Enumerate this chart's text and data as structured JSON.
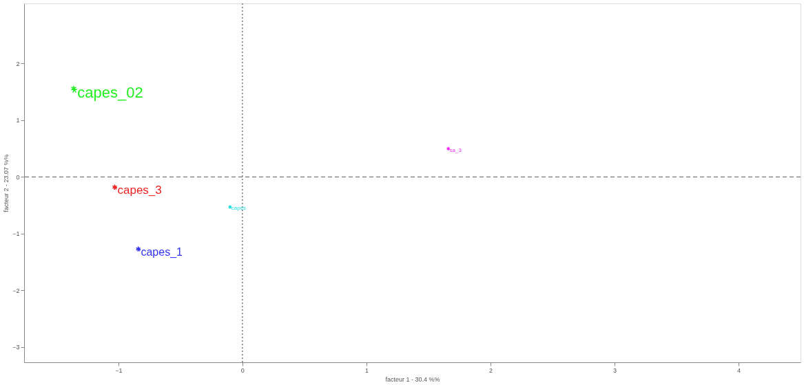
{
  "chart_data": {
    "type": "scatter",
    "xlabel": "facteur  1  - 30.4 %%",
    "ylabel": "facteur 2 - 23.07 %%",
    "xlim": [
      -1.76,
      4.5
    ],
    "xticks": [
      -1,
      0,
      1,
      2,
      3,
      4
    ],
    "ylim": [
      -3.27,
      3.06
    ],
    "yticks": [
      -3,
      -2,
      -1,
      0,
      1,
      2
    ],
    "grid": false,
    "legend": false,
    "marker": "cross",
    "ref_lines": [
      {
        "axis": "x",
        "value": 0,
        "line_style": "dotted",
        "color": "#555555"
      },
      {
        "axis": "y",
        "value": 0,
        "line_style": "dashed",
        "color": "#777777"
      }
    ],
    "series": [
      {
        "name": "*capes_02",
        "color": "#22ee22",
        "x": [
          -1.36
        ],
        "values": [
          1.56
        ]
      },
      {
        "name": "*capes_3",
        "color": "#ee2222",
        "x": [
          -1.03
        ],
        "values": [
          -0.18
        ]
      },
      {
        "name": "*capes_1",
        "color": "#3333ee",
        "x": [
          -0.84
        ],
        "values": [
          -1.27
        ]
      },
      {
        "name": "*capes",
        "color": "#22dddd",
        "x": [
          -0.1
        ],
        "values": [
          -0.53
        ]
      },
      {
        "name": "*sa_3",
        "color": "#ee33ee",
        "x": [
          1.66
        ],
        "values": [
          0.5
        ]
      }
    ]
  }
}
